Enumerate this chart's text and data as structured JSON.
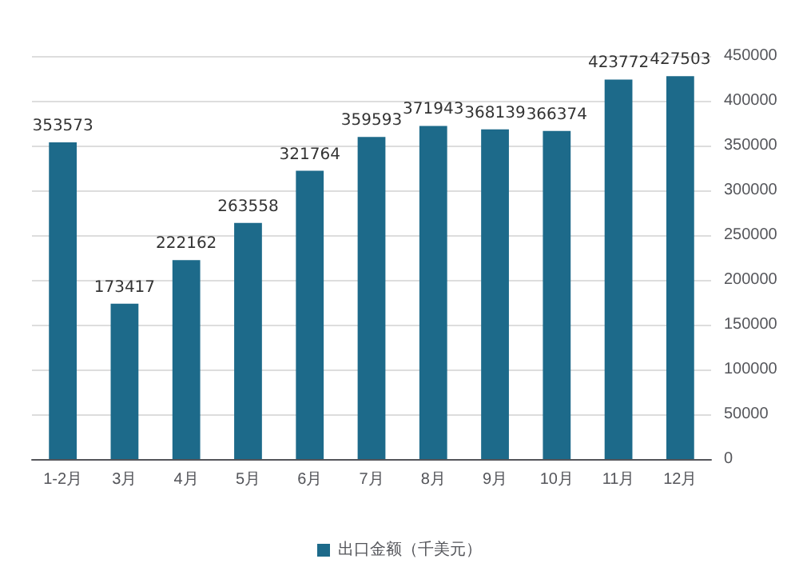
{
  "chart_data": {
    "type": "bar",
    "categories": [
      "1-2月",
      "3月",
      "4月",
      "5月",
      "6月",
      "7月",
      "8月",
      "9月",
      "10月",
      "11月",
      "12月"
    ],
    "series": [
      {
        "name": "出口金额（千美元）",
        "color": "#1d6a8a",
        "values": [
          353573,
          173417,
          222162,
          263558,
          321764,
          359593,
          371943,
          368139,
          366374,
          423772,
          427503
        ]
      }
    ],
    "ylim": [
      0,
      450000
    ],
    "yticks": [
      0,
      50000,
      100000,
      150000,
      200000,
      250000,
      300000,
      350000,
      400000,
      450000
    ],
    "grid": "y",
    "legend": "bottom",
    "data_labels": true
  }
}
